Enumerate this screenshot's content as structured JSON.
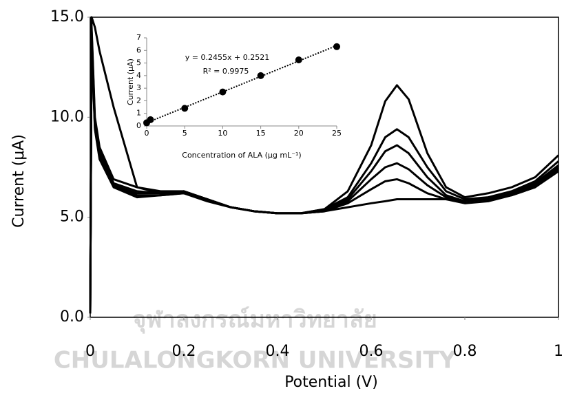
{
  "watermark": [
    "จุฬาลงกรณ์มหาวิทยาลัย",
    "CHULALONGKORN UNIVERSITY"
  ],
  "chart_data": [
    {
      "type": "line",
      "xlabel": "Potential (V)",
      "ylabel": "Current (μA)",
      "xlim": [
        0,
        1
      ],
      "xticks": [
        0,
        0.2,
        0.4,
        0.6,
        0.8,
        1
      ],
      "ylim": [
        0,
        15
      ],
      "yticks": [
        {
          "value": 0,
          "label": "0.0"
        },
        {
          "value": 5,
          "label": "5.0"
        },
        {
          "value": 10,
          "label": "10.0"
        },
        {
          "value": 15,
          "label": "15.0"
        }
      ],
      "x": [
        0,
        0.003,
        0.01,
        0.02,
        0.05,
        0.1,
        0.15,
        0.2,
        0.25,
        0.3,
        0.35,
        0.4,
        0.45,
        0.5,
        0.55,
        0.6,
        0.63,
        0.655,
        0.68,
        0.72,
        0.76,
        0.8,
        0.85,
        0.9,
        0.95,
        1
      ],
      "series": [
        {
          "color": "#000000",
          "values": [
            0.2,
            15,
            14.5,
            13.3,
            10.5,
            6.5,
            6.2,
            6.3,
            5.9,
            5.5,
            5.3,
            5.2,
            5.2,
            5.4,
            6.3,
            8.6,
            10.8,
            11.6,
            10.9,
            8.2,
            6.5,
            6.0,
            6.2,
            6.5,
            7.0,
            8.1
          ]
        },
        {
          "color": "#000000",
          "values": [
            0.2,
            14.5,
            10,
            8.5,
            6.9,
            6.5,
            6.3,
            6.3,
            5.9,
            5.5,
            5.3,
            5.2,
            5.2,
            5.4,
            6.0,
            7.7,
            9.0,
            9.4,
            9.0,
            7.5,
            6.3,
            5.9,
            6.0,
            6.3,
            6.8,
            7.8
          ]
        },
        {
          "color": "#000000",
          "values": [
            0.2,
            14.3,
            9.8,
            8.3,
            6.7,
            6.3,
            6.2,
            6.2,
            5.8,
            5.5,
            5.3,
            5.2,
            5.2,
            5.4,
            5.9,
            7.3,
            8.3,
            8.6,
            8.2,
            7.0,
            6.1,
            5.8,
            5.9,
            6.2,
            6.7,
            7.6
          ]
        },
        {
          "color": "#000000",
          "values": [
            0.2,
            14.2,
            9.6,
            8.2,
            6.6,
            6.2,
            6.2,
            6.3,
            5.9,
            5.5,
            5.3,
            5.2,
            5.2,
            5.3,
            5.8,
            6.9,
            7.5,
            7.7,
            7.4,
            6.6,
            6.0,
            5.8,
            5.9,
            6.2,
            6.6,
            7.5
          ]
        },
        {
          "color": "#000000",
          "values": [
            0.2,
            14.0,
            9.5,
            8.0,
            6.6,
            6.1,
            6.1,
            6.2,
            5.9,
            5.5,
            5.3,
            5.2,
            5.2,
            5.3,
            5.7,
            6.4,
            6.8,
            6.9,
            6.7,
            6.2,
            5.9,
            5.7,
            5.8,
            6.1,
            6.5,
            7.4
          ]
        },
        {
          "color": "#000000",
          "values": [
            0.2,
            13.8,
            9.4,
            7.9,
            6.5,
            6.0,
            6.1,
            6.2,
            5.9,
            5.5,
            5.3,
            5.2,
            5.2,
            5.3,
            5.5,
            5.7,
            5.8,
            5.9,
            5.9,
            5.9,
            5.9,
            5.8,
            5.9,
            6.1,
            6.5,
            7.3
          ]
        }
      ]
    },
    {
      "type": "scatter",
      "xlabel": "Concentration of ALA (μg mL⁻¹)",
      "ylabel": "Current (μA)",
      "xlim": [
        0,
        25
      ],
      "xticks": [
        0,
        5,
        10,
        15,
        20,
        25
      ],
      "ylim": [
        0,
        7
      ],
      "yticks": [
        0,
        1,
        2,
        3,
        4,
        5,
        6,
        7
      ],
      "x": [
        0,
        0.5,
        5,
        10,
        15,
        20,
        25
      ],
      "values": [
        0.25,
        0.5,
        1.4,
        2.7,
        4.0,
        5.25,
        6.3
      ],
      "color": "#000000",
      "trendline": {
        "slope": 0.2455,
        "intercept": 0.2521
      },
      "annotations": [
        "y = 0.2455x + 0.2521",
        "R² = 0.9975"
      ]
    }
  ]
}
